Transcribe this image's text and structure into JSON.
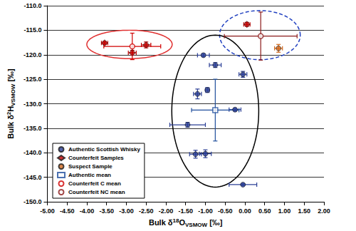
{
  "chart_data": {
    "type": "scatter",
    "xlabel": "Bulk δ18OVSMOW [‰]",
    "ylabel": "Bulk δ2HVSMOW [‰]",
    "xlim": [
      -5,
      2
    ],
    "xticks": [
      {
        "value": -5,
        "label": "-5.00"
      },
      {
        "value": -4.5,
        "label": "-4.50"
      },
      {
        "value": -4,
        "label": "-4.00"
      },
      {
        "value": -3.5,
        "label": "-3.50"
      },
      {
        "value": -3,
        "label": "-3.00"
      },
      {
        "value": -2.5,
        "label": "-2.50"
      },
      {
        "value": -2,
        "label": "-2.00"
      },
      {
        "value": -1.5,
        "label": "-1.50"
      },
      {
        "value": -1,
        "label": "-1.00"
      },
      {
        "value": -0.5,
        "label": "-0.50"
      },
      {
        "value": 0,
        "label": "0.00"
      },
      {
        "value": 0.5,
        "label": "0.50"
      },
      {
        "value": 1,
        "label": "1.00"
      },
      {
        "value": 1.5,
        "label": "1.50"
      },
      {
        "value": 2,
        "label": "2.00"
      }
    ],
    "ylim": [
      -150,
      -110
    ],
    "yticks": [
      {
        "value": -150,
        "label": "-150.0"
      },
      {
        "value": -145,
        "label": "-145.0"
      },
      {
        "value": -140,
        "label": "-140.0"
      },
      {
        "value": -135,
        "label": "-135.0"
      },
      {
        "value": -130,
        "label": "-130.0"
      },
      {
        "value": -125,
        "label": "-125.0"
      },
      {
        "value": -120,
        "label": "-120.0"
      },
      {
        "value": -115,
        "label": "-115.0"
      },
      {
        "value": -110,
        "label": "-110.0"
      }
    ],
    "grid": "y",
    "legend": "lower left",
    "series": [
      {
        "name": "Authentic Scottish Whisky",
        "color": "#2b3f96",
        "marker": "circle",
        "x": [
          -1.05,
          -0.75,
          -0.05,
          -0.95,
          -1.2,
          -0.25,
          -1.45,
          -1.25,
          -1.0,
          -0.05
        ],
        "y": [
          -120.1,
          -122.1,
          -124.0,
          -127.2,
          -128.0,
          -131.2,
          -134.3,
          -140.3,
          -140.2,
          -146.5
        ],
        "x_err": [
          0.15,
          0.15,
          0.1,
          0.05,
          0.1,
          0.15,
          0.45,
          0.15,
          0.15,
          0.35
        ],
        "y_err": [
          0.3,
          0.5,
          0.6,
          0.5,
          1.0,
          0.3,
          0.5,
          0.8,
          0.8,
          0.2
        ]
      },
      {
        "name": "Counterfeit Samples",
        "color": "#c00000",
        "marker": "diamond",
        "x": [
          -3.55,
          -2.5,
          -2.85,
          0.05
        ],
        "y": [
          -117.6,
          -118.0,
          -119.6,
          -113.8
        ],
        "x_err": [
          0.08,
          0.12,
          0.1,
          0.08
        ],
        "y_err": [
          0.3,
          0.6,
          0.5,
          0.4
        ]
      },
      {
        "name": "Suspect Sample",
        "color": "#d2691e",
        "marker": "circle",
        "x": [
          0.85
        ],
        "y": [
          -118.7
        ],
        "x_err": [
          0.1
        ],
        "y_err": [
          0.8
        ]
      },
      {
        "name": "Authentic mean",
        "color": "#1f4e9c",
        "marker": "square-open",
        "x": [
          -0.75
        ],
        "y": [
          -131.3
        ],
        "x_err": [
          0.6
        ],
        "y_err": [
          6.3
        ]
      },
      {
        "name": "Counterfeit C mean",
        "color": "#d00000",
        "marker": "circle-open",
        "x": [
          -2.85
        ],
        "y": [
          -118.3
        ],
        "x_err": [
          0.72
        ],
        "y_err": [
          2.7
        ]
      },
      {
        "name": "Counterfeit NC mean",
        "color": "#8b1a1a",
        "marker": "circle-open",
        "x": [
          0.4
        ],
        "y": [
          -116.2
        ],
        "x_err": [
          0.92
        ],
        "y_err": [
          4.9
        ]
      }
    ],
    "ellipses": [
      {
        "cx": -2.92,
        "cy": -117.9,
        "rx": 1.08,
        "ry": 2.9,
        "color": "#e03030",
        "line_style": "solid"
      },
      {
        "cx": 0.38,
        "cy": -116.0,
        "rx": 1.02,
        "ry": 5.0,
        "color": "#2040c0",
        "line_style": "dashed"
      },
      {
        "cx": -0.75,
        "cy": -131.5,
        "rx": 1.1,
        "ry": 15.5,
        "color": "#000000",
        "line_style": "solid"
      }
    ]
  }
}
